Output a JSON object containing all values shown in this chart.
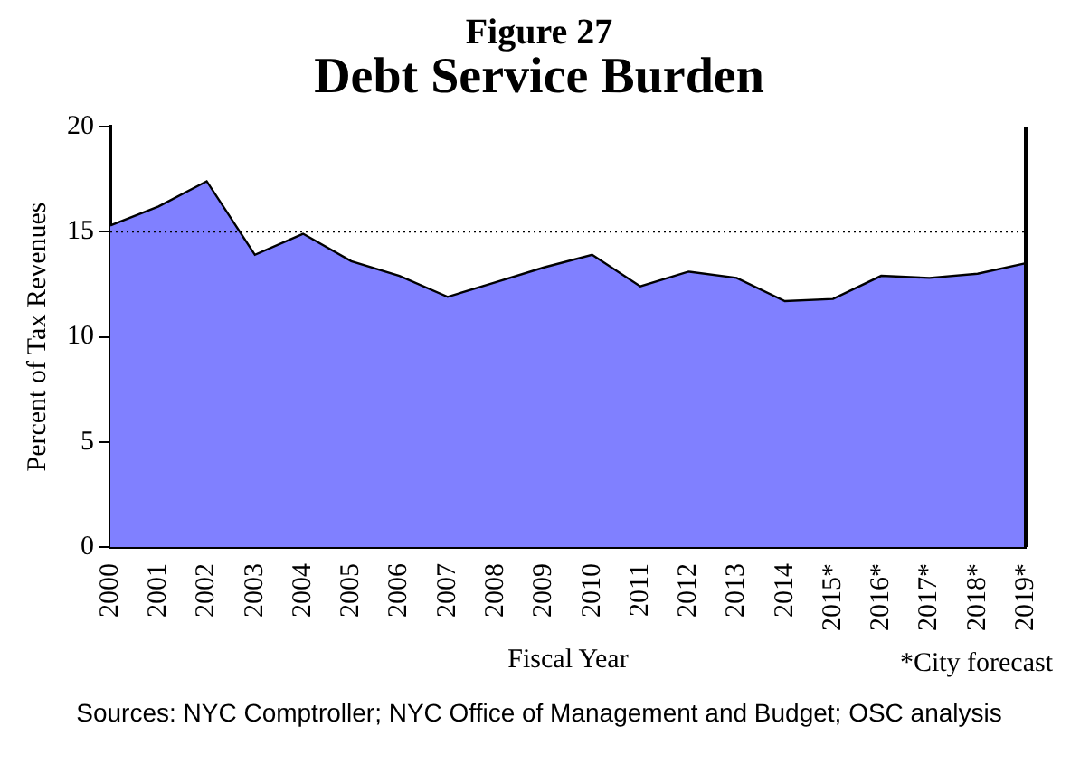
{
  "chart_data": {
    "type": "area",
    "subtitle": "Figure 27",
    "title": "Debt Service Burden",
    "xlabel": "Fiscal Year",
    "ylabel": "Percent of Tax Revenues",
    "categories": [
      "2000",
      "2001",
      "2002",
      "2003",
      "2004",
      "2005",
      "2006",
      "2007",
      "2008",
      "2009",
      "2010",
      "2011",
      "2012",
      "2013",
      "2014",
      "2015*",
      "2016*",
      "2017*",
      "2018*",
      "2019*"
    ],
    "series": [
      {
        "color": "#8080ff",
        "values": [
          15.3,
          16.2,
          17.4,
          13.9,
          14.9,
          13.6,
          12.9,
          11.9,
          12.6,
          13.3,
          13.9,
          12.4,
          13.1,
          12.8,
          11.7,
          11.8,
          12.9,
          12.8,
          13.0,
          13.5
        ]
      }
    ],
    "ylim": [
      0,
      20
    ],
    "yticks": [
      0,
      5,
      10,
      15,
      20
    ],
    "grid": false,
    "legend": false,
    "ref_lines": [
      {
        "axis": "y",
        "value": 15,
        "color": "#000000",
        "line_style": "dotted"
      }
    ],
    "annotations": [
      "*City forecast",
      "Sources: NYC Comptroller; NYC Office of Management and Budget; OSC analysis"
    ]
  }
}
